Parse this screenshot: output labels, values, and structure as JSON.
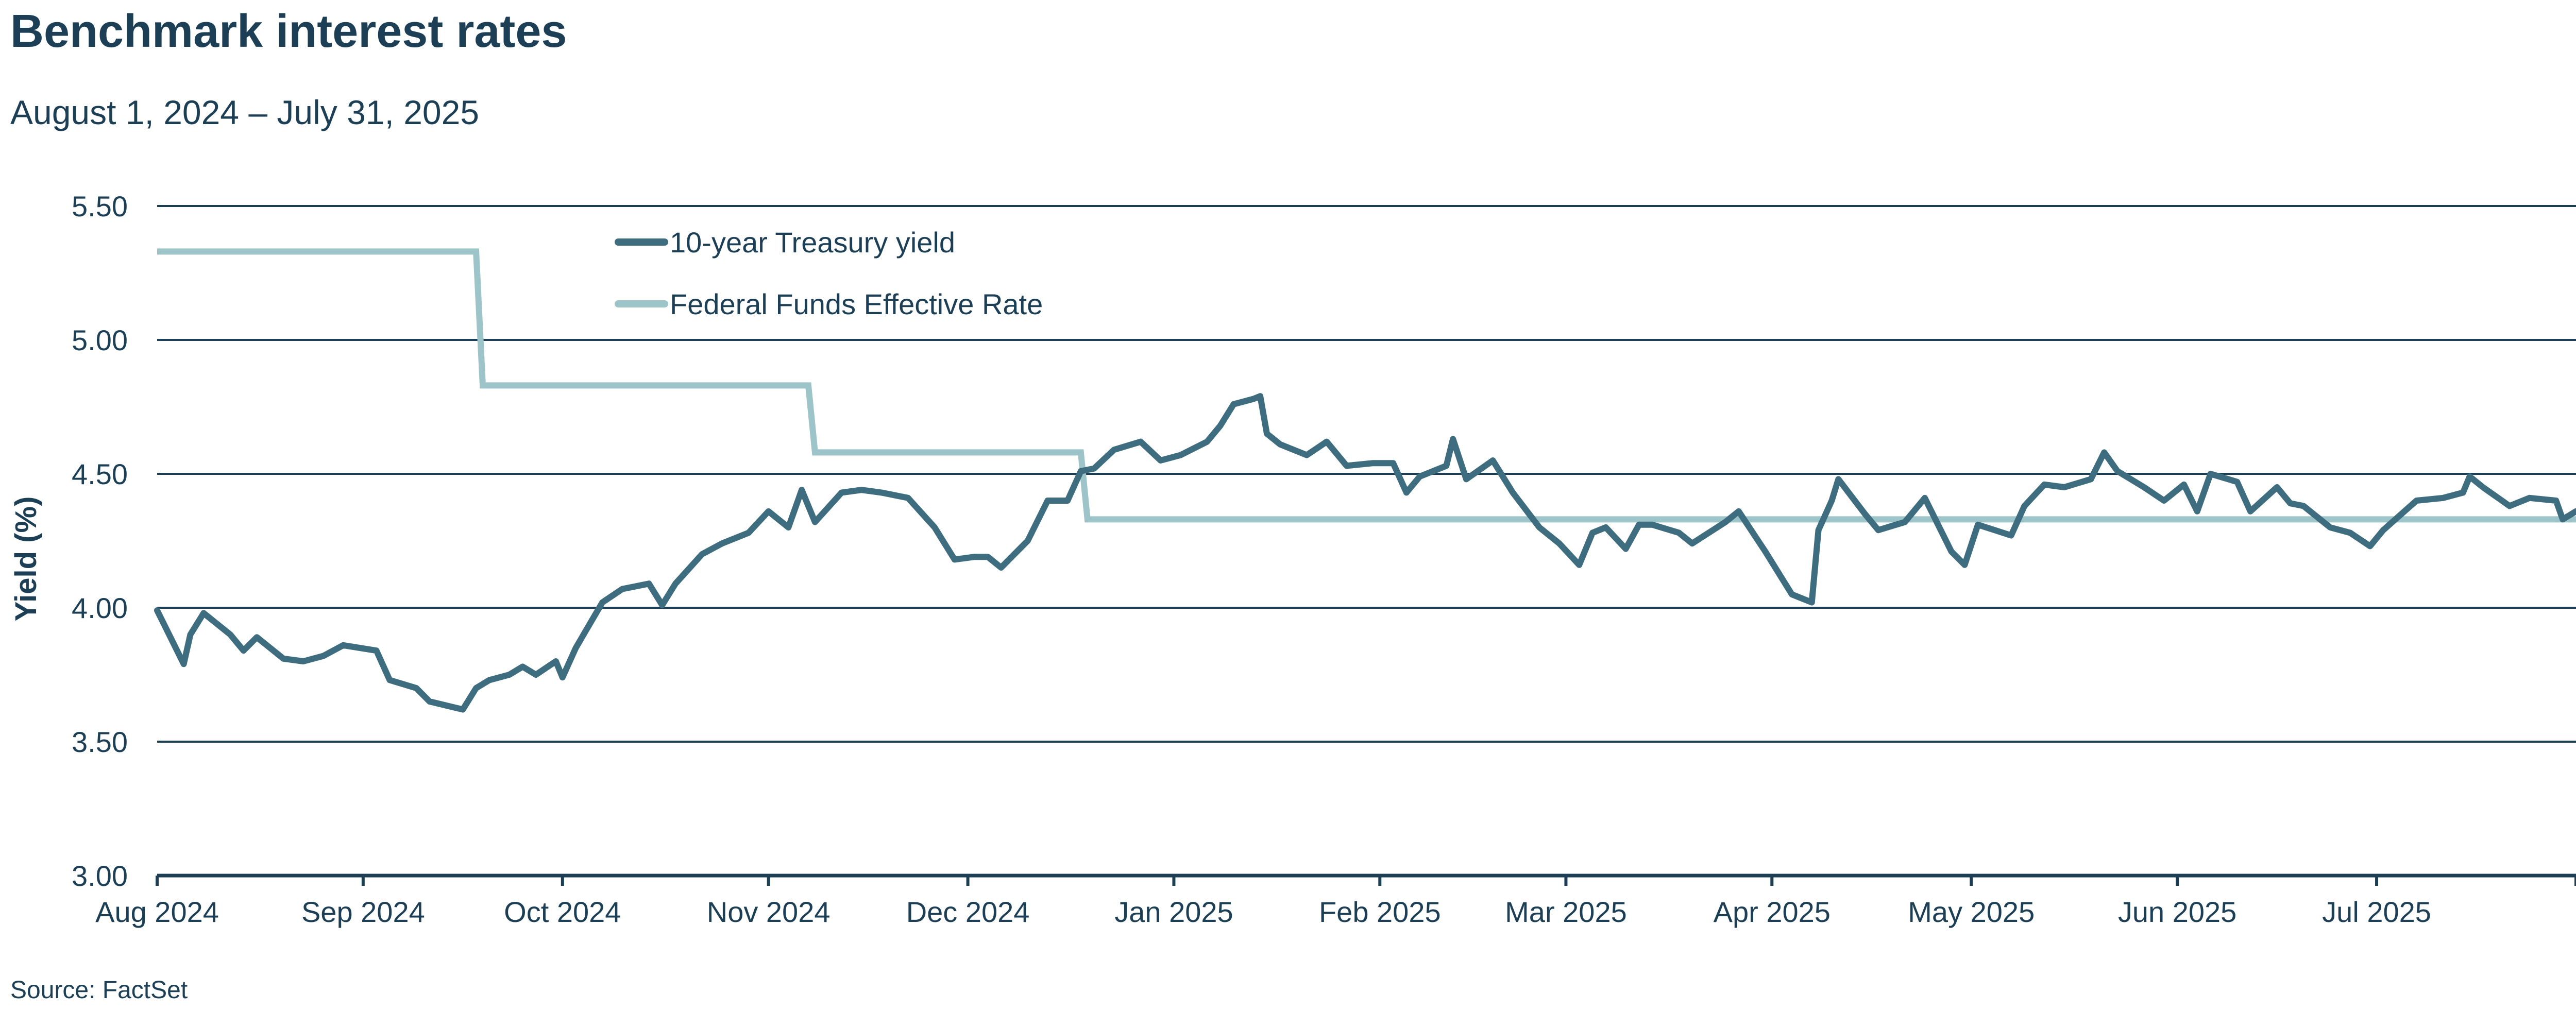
{
  "title": "Benchmark interest rates",
  "subtitle": "August 1, 2024 – July 31, 2025",
  "source": "Source: FactSet",
  "colors": {
    "treasury": "#3f6d80",
    "fedfunds": "#9cc4c9",
    "grid": "#1c3f55",
    "text": "#1c3f55"
  },
  "chart_data": {
    "type": "line",
    "ylabel": "Yield (%)",
    "xlabel": "",
    "ylim": [
      3.0,
      5.5
    ],
    "yticks": [
      "3.00",
      "3.50",
      "4.00",
      "4.50",
      "5.00",
      "5.50"
    ],
    "xlim": [
      "2024-08-01",
      "2025-07-31"
    ],
    "xticks": [
      {
        "date": "2024-08-01",
        "label": "Aug 2024"
      },
      {
        "date": "2024-09-01",
        "label": "Sep 2024"
      },
      {
        "date": "2024-10-01",
        "label": "Oct 2024"
      },
      {
        "date": "2024-11-01",
        "label": "Nov 2024"
      },
      {
        "date": "2024-12-01",
        "label": "Dec 2024"
      },
      {
        "date": "2025-01-01",
        "label": "Jan 2025"
      },
      {
        "date": "2025-02-01",
        "label": "Feb 2025"
      },
      {
        "date": "2025-03-01",
        "label": "Mar 2025"
      },
      {
        "date": "2025-04-01",
        "label": "Apr 2025"
      },
      {
        "date": "2025-05-01",
        "label": "May 2025"
      },
      {
        "date": "2025-06-01",
        "label": "Jun 2025"
      },
      {
        "date": "2025-07-01",
        "label": "Jul 2025"
      }
    ],
    "grid": "horizontal",
    "legend_position": "top-center",
    "series": [
      {
        "name": "10-year Treasury yield",
        "points": [
          [
            "2024-08-01",
            3.99
          ],
          [
            "2024-08-05",
            3.79
          ],
          [
            "2024-08-06",
            3.9
          ],
          [
            "2024-08-08",
            3.98
          ],
          [
            "2024-08-12",
            3.9
          ],
          [
            "2024-08-14",
            3.84
          ],
          [
            "2024-08-16",
            3.89
          ],
          [
            "2024-08-20",
            3.81
          ],
          [
            "2024-08-23",
            3.8
          ],
          [
            "2024-08-26",
            3.82
          ],
          [
            "2024-08-29",
            3.86
          ],
          [
            "2024-09-03",
            3.84
          ],
          [
            "2024-09-05",
            3.73
          ],
          [
            "2024-09-09",
            3.7
          ],
          [
            "2024-09-11",
            3.65
          ],
          [
            "2024-09-16",
            3.62
          ],
          [
            "2024-09-18",
            3.7
          ],
          [
            "2024-09-20",
            3.73
          ],
          [
            "2024-09-23",
            3.75
          ],
          [
            "2024-09-25",
            3.78
          ],
          [
            "2024-09-27",
            3.75
          ],
          [
            "2024-09-30",
            3.8
          ],
          [
            "2024-10-01",
            3.74
          ],
          [
            "2024-10-03",
            3.85
          ],
          [
            "2024-10-07",
            4.02
          ],
          [
            "2024-10-10",
            4.07
          ],
          [
            "2024-10-14",
            4.09
          ],
          [
            "2024-10-16",
            4.01
          ],
          [
            "2024-10-18",
            4.09
          ],
          [
            "2024-10-22",
            4.2
          ],
          [
            "2024-10-25",
            4.24
          ],
          [
            "2024-10-29",
            4.28
          ],
          [
            "2024-11-01",
            4.36
          ],
          [
            "2024-11-04",
            4.3
          ],
          [
            "2024-11-06",
            4.44
          ],
          [
            "2024-11-08",
            4.32
          ],
          [
            "2024-11-12",
            4.43
          ],
          [
            "2024-11-15",
            4.44
          ],
          [
            "2024-11-18",
            4.43
          ],
          [
            "2024-11-22",
            4.41
          ],
          [
            "2024-11-26",
            4.3
          ],
          [
            "2024-11-29",
            4.18
          ],
          [
            "2024-12-02",
            4.19
          ],
          [
            "2024-12-04",
            4.19
          ],
          [
            "2024-12-06",
            4.15
          ],
          [
            "2024-12-10",
            4.25
          ],
          [
            "2024-12-13",
            4.4
          ],
          [
            "2024-12-16",
            4.4
          ],
          [
            "2024-12-18",
            4.51
          ],
          [
            "2024-12-20",
            4.52
          ],
          [
            "2024-12-23",
            4.59
          ],
          [
            "2024-12-27",
            4.62
          ],
          [
            "2024-12-30",
            4.55
          ],
          [
            "2025-01-02",
            4.57
          ],
          [
            "2025-01-06",
            4.62
          ],
          [
            "2025-01-08",
            4.68
          ],
          [
            "2025-01-10",
            4.76
          ],
          [
            "2025-01-13",
            4.78
          ],
          [
            "2025-01-14",
            4.79
          ],
          [
            "2025-01-15",
            4.65
          ],
          [
            "2025-01-17",
            4.61
          ],
          [
            "2025-01-21",
            4.57
          ],
          [
            "2025-01-24",
            4.62
          ],
          [
            "2025-01-27",
            4.53
          ],
          [
            "2025-01-31",
            4.54
          ],
          [
            "2025-02-03",
            4.54
          ],
          [
            "2025-02-05",
            4.43
          ],
          [
            "2025-02-07",
            4.49
          ],
          [
            "2025-02-11",
            4.53
          ],
          [
            "2025-02-12",
            4.63
          ],
          [
            "2025-02-14",
            4.48
          ],
          [
            "2025-02-18",
            4.55
          ],
          [
            "2025-02-21",
            4.43
          ],
          [
            "2025-02-25",
            4.3
          ],
          [
            "2025-02-28",
            4.24
          ],
          [
            "2025-03-03",
            4.16
          ],
          [
            "2025-03-05",
            4.28
          ],
          [
            "2025-03-07",
            4.3
          ],
          [
            "2025-03-10",
            4.22
          ],
          [
            "2025-03-12",
            4.31
          ],
          [
            "2025-03-14",
            4.31
          ],
          [
            "2025-03-18",
            4.28
          ],
          [
            "2025-03-20",
            4.24
          ],
          [
            "2025-03-25",
            4.32
          ],
          [
            "2025-03-27",
            4.36
          ],
          [
            "2025-03-31",
            4.21
          ],
          [
            "2025-04-02",
            4.13
          ],
          [
            "2025-04-04",
            4.05
          ],
          [
            "2025-04-07",
            4.02
          ],
          [
            "2025-04-08",
            4.29
          ],
          [
            "2025-04-10",
            4.4
          ],
          [
            "2025-04-11",
            4.48
          ],
          [
            "2025-04-15",
            4.35
          ],
          [
            "2025-04-17",
            4.29
          ],
          [
            "2025-04-21",
            4.32
          ],
          [
            "2025-04-24",
            4.41
          ],
          [
            "2025-04-28",
            4.21
          ],
          [
            "2025-04-30",
            4.16
          ],
          [
            "2025-05-02",
            4.31
          ],
          [
            "2025-05-07",
            4.27
          ],
          [
            "2025-05-09",
            4.38
          ],
          [
            "2025-05-12",
            4.46
          ],
          [
            "2025-05-15",
            4.45
          ],
          [
            "2025-05-19",
            4.48
          ],
          [
            "2025-05-21",
            4.58
          ],
          [
            "2025-05-23",
            4.51
          ],
          [
            "2025-05-27",
            4.45
          ],
          [
            "2025-05-30",
            4.4
          ],
          [
            "2025-06-02",
            4.46
          ],
          [
            "2025-06-04",
            4.36
          ],
          [
            "2025-06-06",
            4.5
          ],
          [
            "2025-06-10",
            4.47
          ],
          [
            "2025-06-12",
            4.36
          ],
          [
            "2025-06-16",
            4.45
          ],
          [
            "2025-06-18",
            4.39
          ],
          [
            "2025-06-20",
            4.38
          ],
          [
            "2025-06-24",
            4.3
          ],
          [
            "2025-06-27",
            4.28
          ],
          [
            "2025-06-30",
            4.23
          ],
          [
            "2025-07-02",
            4.29
          ],
          [
            "2025-07-07",
            4.4
          ],
          [
            "2025-07-11",
            4.41
          ],
          [
            "2025-07-14",
            4.43
          ],
          [
            "2025-07-15",
            4.49
          ],
          [
            "2025-07-17",
            4.45
          ],
          [
            "2025-07-21",
            4.38
          ],
          [
            "2025-07-24",
            4.41
          ],
          [
            "2025-07-28",
            4.4
          ],
          [
            "2025-07-29",
            4.33
          ],
          [
            "2025-07-31",
            4.36
          ]
        ]
      },
      {
        "name": "Federal Funds Effective Rate",
        "points": [
          [
            "2024-08-01",
            5.33
          ],
          [
            "2024-09-18",
            5.33
          ],
          [
            "2024-09-19",
            4.83
          ],
          [
            "2024-11-07",
            4.83
          ],
          [
            "2024-11-08",
            4.58
          ],
          [
            "2024-12-18",
            4.58
          ],
          [
            "2024-12-19",
            4.33
          ],
          [
            "2025-07-31",
            4.33
          ]
        ]
      }
    ]
  }
}
